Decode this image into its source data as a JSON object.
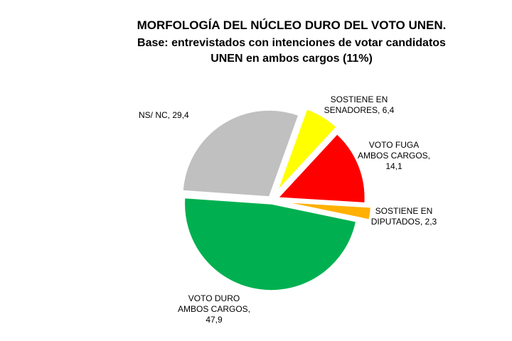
{
  "chart_data": {
    "type": "pie",
    "title": "MORFOLOGÍA DEL NÚCLEO DURO DEL VOTO UNEN.",
    "subtitle": "Base: entrevistados con intenciones de votar candidatos UNEN en ambos cargos (11%)",
    "categories": [
      "NS/ NC",
      "SOSTIENE EN SENADORES",
      "VOTO FUGA AMBOS CARGOS",
      "SOSTIENE EN DIPUTADOS",
      "VOTO DURO AMBOS CARGOS"
    ],
    "values": [
      29.4,
      6.4,
      14.1,
      2.3,
      47.9
    ],
    "value_labels": [
      "29,4",
      "6,4",
      "14,1",
      "2,3",
      "47,9"
    ],
    "colors": [
      "#c0c0c0",
      "#ffff00",
      "#ff0000",
      "#ffb000",
      "#00b050"
    ]
  }
}
